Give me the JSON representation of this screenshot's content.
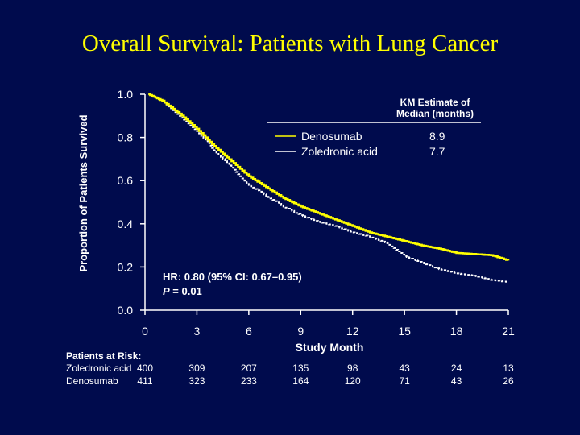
{
  "slide_title": "Overall Survival: Patients with Lung Cancer",
  "colors": {
    "background": "#000b4d",
    "title": "#ffff00",
    "denosumab": "#ffff00",
    "zoledronic": "#ffffff",
    "text": "#ffffff"
  },
  "chart_data": {
    "type": "line",
    "xlabel": "Study Month",
    "ylabel": "Proportion of Patients Survived",
    "xlim": [
      0,
      21
    ],
    "ylim": [
      0,
      1.0
    ],
    "x_ticks": [
      "0",
      "3",
      "6",
      "9",
      "12",
      "15",
      "18",
      "21"
    ],
    "y_ticks": [
      "0.0",
      "0.2",
      "0.4",
      "0.6",
      "0.8",
      "1.0"
    ],
    "legend": {
      "header": [
        "KM Estimate of",
        "Median (months)"
      ],
      "entries": [
        {
          "name": "Denosumab",
          "median": "8.9"
        },
        {
          "name": "Zoledronic acid",
          "median": "7.7"
        }
      ]
    },
    "annotation": {
      "hr": "HR: 0.80 (95% CI: 0.67–0.95)",
      "p_label": "P",
      "p_value": " = 0.01"
    },
    "series": [
      {
        "name": "Denosumab",
        "x": [
          0.2,
          1,
          2,
          3,
          4,
          5,
          6,
          7,
          8,
          9,
          10,
          11,
          12,
          13,
          14,
          15,
          16,
          17,
          18,
          19,
          20,
          21
        ],
        "y": [
          1.0,
          0.97,
          0.91,
          0.84,
          0.76,
          0.69,
          0.62,
          0.57,
          0.52,
          0.48,
          0.45,
          0.42,
          0.39,
          0.36,
          0.34,
          0.32,
          0.3,
          0.285,
          0.265,
          0.26,
          0.255,
          0.23
        ]
      },
      {
        "name": "Zoledronic acid",
        "x": [
          0.2,
          1,
          2,
          3,
          4,
          5,
          6,
          7,
          8,
          9,
          10,
          11,
          12,
          13,
          14,
          15,
          16,
          17,
          18,
          19,
          20,
          21
        ],
        "y": [
          1.0,
          0.97,
          0.9,
          0.83,
          0.74,
          0.66,
          0.58,
          0.53,
          0.48,
          0.44,
          0.41,
          0.39,
          0.36,
          0.34,
          0.31,
          0.25,
          0.22,
          0.19,
          0.17,
          0.16,
          0.14,
          0.13
        ]
      }
    ],
    "at_risk": {
      "header": "Patients at Risk:",
      "rows": [
        {
          "label": "Zoledronic acid",
          "values": [
            "400",
            "309",
            "207",
            "135",
            "98",
            "43",
            "24",
            "13"
          ]
        },
        {
          "label": "Denosumab",
          "values": [
            "411",
            "323",
            "233",
            "164",
            "120",
            "71",
            "43",
            "26"
          ]
        }
      ]
    }
  }
}
